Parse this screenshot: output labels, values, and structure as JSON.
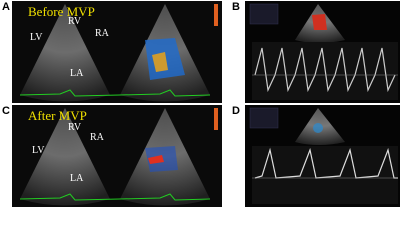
{
  "panels": [
    {
      "letter": "A",
      "caption": "Before MVP",
      "labels": [
        "RV",
        "RA",
        "LV",
        "LA"
      ]
    },
    {
      "letter": "B"
    },
    {
      "letter": "C",
      "caption": "After MVP",
      "labels": [
        "RV",
        "RA",
        "LV",
        "LA"
      ]
    },
    {
      "letter": "D"
    }
  ]
}
